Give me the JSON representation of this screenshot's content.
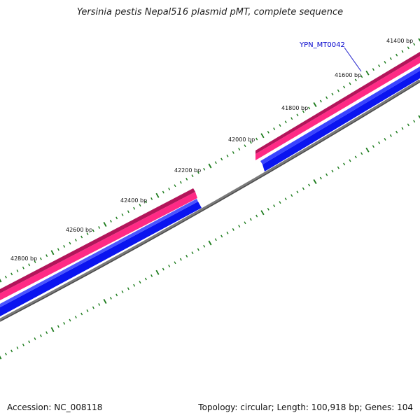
{
  "title": "Yersinia pestis Nepal516 plasmid pMT, complete sequence",
  "footer": {
    "accession": "Accession: NC_008118",
    "summary": "Topology: circular; Length: 100,918 bp; Genes: 104"
  },
  "feature_label": "YPN_MT0042",
  "colors": {
    "forward_feature": "#ff2a85",
    "reverse_feature": "#0a14f0",
    "backbone": "#7a7a7a",
    "ticks": "#1a7a1a",
    "label_link": "#2222cc"
  },
  "ruler_labels": [
    {
      "text": "41400 bp"
    },
    {
      "text": "41600 bp"
    },
    {
      "text": "41800 bp"
    },
    {
      "text": "42000 bp"
    },
    {
      "text": "42200 bp"
    },
    {
      "text": "42400 bp"
    },
    {
      "text": "42600 bp"
    },
    {
      "text": "42800 bp"
    }
  ]
}
